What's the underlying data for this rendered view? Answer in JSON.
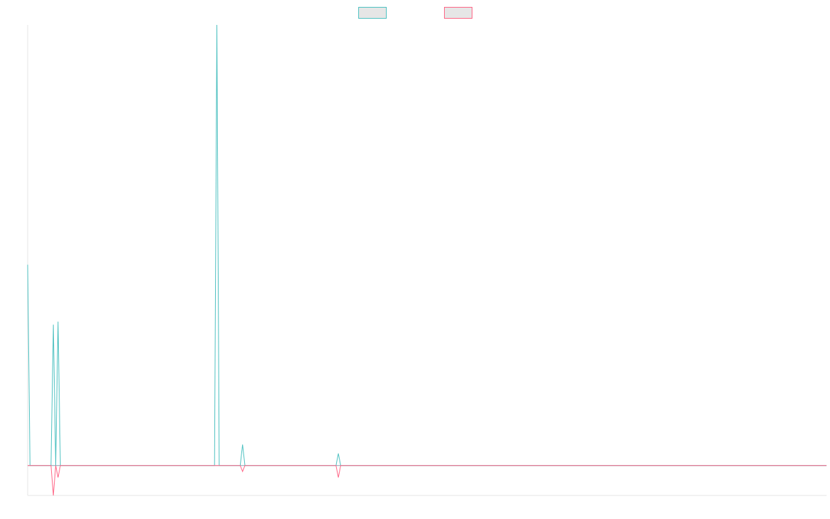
{
  "chart_data": {
    "type": "line",
    "title": "",
    "xlabel": "",
    "ylabel": "",
    "x_count": 343,
    "ylim": [
      -10,
      147
    ],
    "grid": false,
    "legend_position": "top-center",
    "series": [
      {
        "color": "#4bc0c0",
        "fill": "#e6e6e6",
        "points": [
          [
            0,
            67
          ],
          [
            1,
            0
          ],
          [
            2,
            0
          ],
          [
            10,
            0
          ],
          [
            11,
            47
          ],
          [
            12,
            0
          ],
          [
            13,
            48
          ],
          [
            14,
            0
          ],
          [
            80,
            0
          ],
          [
            81,
            147
          ],
          [
            82,
            0
          ],
          [
            91,
            0
          ],
          [
            92,
            7
          ],
          [
            93,
            0
          ],
          [
            132,
            0
          ],
          [
            133,
            4
          ],
          [
            134,
            0
          ],
          [
            342,
            0
          ]
        ]
      },
      {
        "color": "#ff6384",
        "fill": "#e6e6e6",
        "points": [
          [
            0,
            0
          ],
          [
            10,
            0
          ],
          [
            11,
            -10
          ],
          [
            12,
            0
          ],
          [
            13,
            -4
          ],
          [
            14,
            0
          ],
          [
            91,
            0
          ],
          [
            92,
            -2
          ],
          [
            93,
            0
          ],
          [
            132,
            0
          ],
          [
            133,
            -4
          ],
          [
            134,
            0
          ],
          [
            342,
            0
          ]
        ]
      }
    ],
    "axis_color": "#e5e5e5",
    "zero_line_color": "#8aa1b1"
  }
}
